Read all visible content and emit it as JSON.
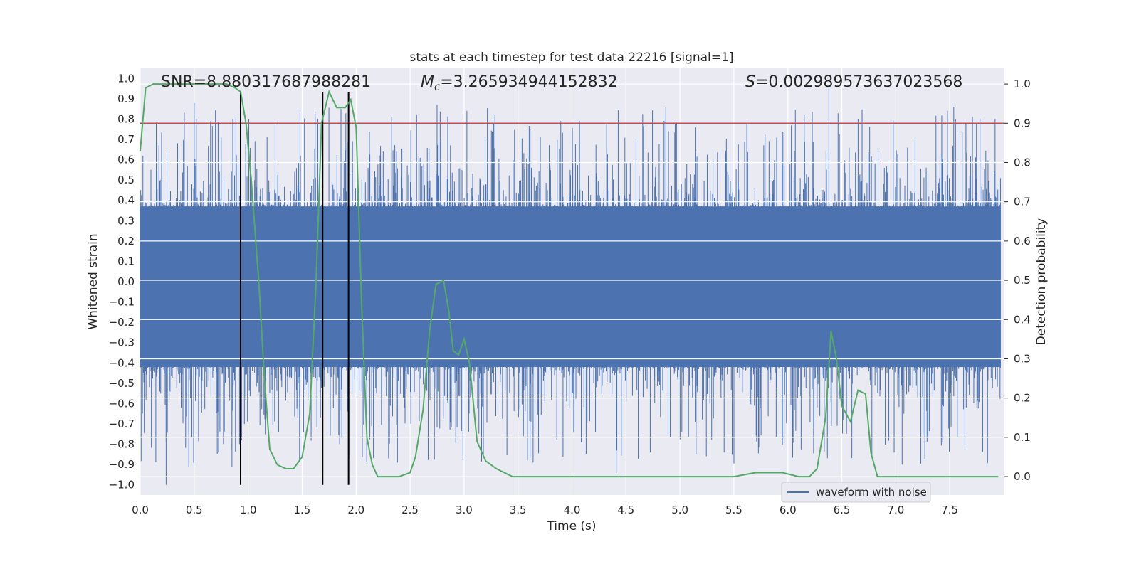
{
  "chart_data": {
    "type": "line",
    "title": "stats at each timestep for test data 22216 [signal=1]",
    "xlabel": "Time (s)",
    "ylabel": "Whitened strain",
    "y2label": "Detection probability",
    "xlim": [
      0.0,
      8.0
    ],
    "ylim": [
      -1.05,
      1.05
    ],
    "y2lim": [
      -0.047,
      1.04
    ],
    "xticks": [
      "0.0",
      "0.5",
      "1.0",
      "1.5",
      "2.0",
      "2.5",
      "3.0",
      "3.5",
      "4.0",
      "4.5",
      "5.0",
      "5.5",
      "6.0",
      "6.5",
      "7.0",
      "7.5"
    ],
    "yticks": [
      "1.0",
      "0.9",
      "0.8",
      "0.7",
      "0.6",
      "0.5",
      "0.4",
      "0.3",
      "0.2",
      "0.1",
      "0.0",
      "-0.1",
      "-0.2",
      "-0.3",
      "-0.4",
      "-0.5",
      "-0.6",
      "-0.7",
      "-0.8",
      "-0.9",
      "-1.0"
    ],
    "y2ticks": [
      "1.0",
      "0.9",
      "0.8",
      "0.7",
      "0.6",
      "0.5",
      "0.4",
      "0.3",
      "0.2",
      "0.1",
      "0.0"
    ],
    "grid": true,
    "legend_position": "lower-right",
    "annotations": {
      "snr": "SNR=8.880317687988281",
      "mc_symbol": "M",
      "mc_sub": "c",
      "mc_value": "=3.265934944152832",
      "s_symbol": "S",
      "s_value": "=0.002989573637023568"
    },
    "series": [
      {
        "name": "waveform with noise",
        "axis": "left",
        "color": "#4c72b0",
        "style": "noise",
        "t_range": [
          0.0,
          7.97
        ],
        "typical_band": [
          -0.42,
          0.37
        ],
        "extreme_range": [
          -1.0,
          0.96
        ],
        "spikes": [
          {
            "t": 0.5,
            "v": 0.88
          },
          {
            "t": 2.75,
            "v": 0.87
          },
          {
            "t": 6.38,
            "v": 0.96
          },
          {
            "t": 1.86,
            "v": 0.85
          },
          {
            "t": 4.07,
            "v": 0.79
          },
          {
            "t": 5.62,
            "v": 0.78
          },
          {
            "t": 7.92,
            "v": 0.8
          },
          {
            "t": 7.65,
            "v": 0.78
          },
          {
            "t": 0.24,
            "v": -1.0
          },
          {
            "t": 4.41,
            "v": -0.94
          },
          {
            "t": 0.85,
            "v": -0.91
          },
          {
            "t": 0.45,
            "v": -0.91
          },
          {
            "t": 2.99,
            "v": -0.88
          },
          {
            "t": 3.64,
            "v": -0.89
          }
        ]
      },
      {
        "name": "",
        "axis": "right",
        "color": "#55a868",
        "style": "line",
        "x": [
          0.0,
          0.05,
          0.12,
          0.2,
          0.4,
          0.6,
          0.8,
          0.88,
          0.93,
          0.98,
          1.03,
          1.1,
          1.15,
          1.2,
          1.27,
          1.35,
          1.42,
          1.5,
          1.57,
          1.63,
          1.68,
          1.75,
          1.82,
          1.9,
          1.95,
          2.0,
          2.05,
          2.1,
          2.15,
          2.2,
          2.3,
          2.4,
          2.5,
          2.55,
          2.62,
          2.68,
          2.74,
          2.81,
          2.86,
          2.9,
          2.95,
          3.0,
          3.05,
          3.12,
          3.2,
          3.3,
          3.45,
          3.6,
          4.0,
          4.25,
          4.4,
          4.55,
          4.8,
          5.0,
          5.3,
          5.5,
          5.7,
          5.8,
          5.95,
          6.1,
          6.2,
          6.27,
          6.35,
          6.4,
          6.45,
          6.5,
          6.58,
          6.65,
          6.72,
          6.77,
          6.83,
          6.9,
          7.0,
          7.2,
          7.5,
          7.8,
          7.95
        ],
        "y": [
          0.83,
          0.99,
          1.0,
          1.0,
          1.0,
          1.0,
          1.0,
          0.99,
          0.98,
          0.9,
          0.75,
          0.49,
          0.25,
          0.07,
          0.03,
          0.02,
          0.02,
          0.05,
          0.16,
          0.5,
          0.9,
          0.98,
          0.94,
          0.94,
          0.96,
          0.89,
          0.45,
          0.1,
          0.03,
          0.0,
          0.0,
          0.0,
          0.01,
          0.05,
          0.17,
          0.37,
          0.49,
          0.5,
          0.42,
          0.32,
          0.31,
          0.35,
          0.29,
          0.09,
          0.04,
          0.02,
          0.0,
          0.0,
          0.0,
          0.0,
          0.0,
          0.0,
          0.0,
          0.0,
          0.0,
          0.0,
          0.01,
          0.01,
          0.01,
          0.0,
          0.0,
          0.02,
          0.15,
          0.37,
          0.3,
          0.18,
          0.14,
          0.22,
          0.21,
          0.06,
          0.0,
          0.0,
          0.0,
          0.0,
          0.0,
          0.0,
          0.0
        ]
      }
    ],
    "threshold_line": {
      "axis": "right",
      "value": 0.9,
      "color": "#c44e52"
    },
    "vertical_lines": {
      "x": [
        0.93,
        1.69,
        1.93
      ],
      "ymin": -1.0,
      "ymax": 0.98,
      "color": "#000000"
    }
  }
}
